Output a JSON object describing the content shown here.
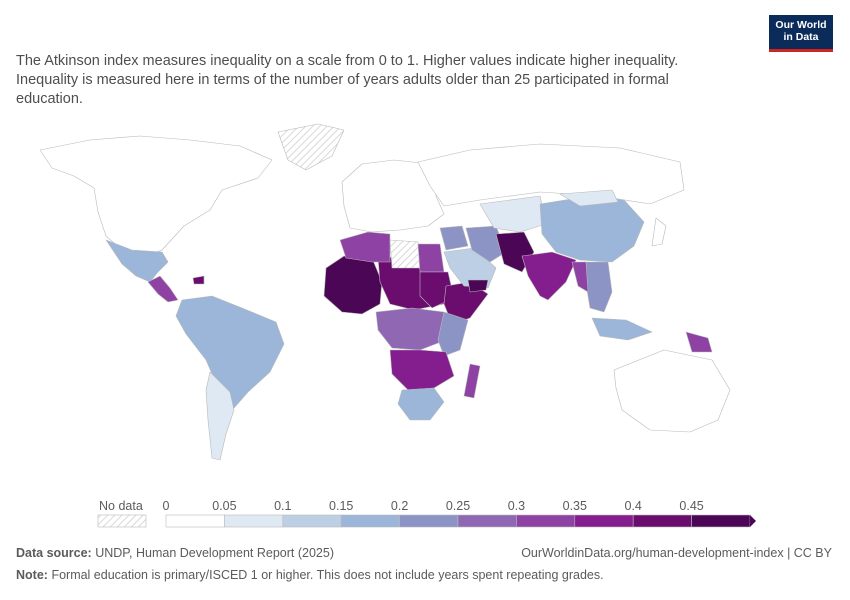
{
  "subtitle": "The Atkinson index measures inequality on a scale from 0 to 1. Higher values indicate higher inequality. Inequality is measured here in terms of the number of years adults older than 25 participated in formal education.",
  "logo": {
    "line1": "Our World",
    "line2": "in Data"
  },
  "legend": {
    "no_data_label": "No data",
    "tick_labels": [
      "0",
      "0.05",
      "0.1",
      "0.15",
      "0.2",
      "0.25",
      "0.3",
      "0.35",
      "0.4",
      "0.45"
    ],
    "bins": [
      {
        "from": 0,
        "to": 0.05,
        "color": "#ffffff"
      },
      {
        "from": 0.05,
        "to": 0.1,
        "color": "#dfe9f3"
      },
      {
        "from": 0.1,
        "to": 0.15,
        "color": "#bccfe5"
      },
      {
        "from": 0.15,
        "to": 0.2,
        "color": "#9bb6d8"
      },
      {
        "from": 0.2,
        "to": 0.25,
        "color": "#8c94c6"
      },
      {
        "from": 0.25,
        "to": 0.3,
        "color": "#8f67b3"
      },
      {
        "from": 0.3,
        "to": 0.35,
        "color": "#8e42a3"
      },
      {
        "from": 0.35,
        "to": 0.4,
        "color": "#841d8d"
      },
      {
        "from": 0.4,
        "to": 0.45,
        "color": "#6a0d6e"
      },
      {
        "from": 0.45,
        "to": 0.5,
        "color": "#4b0755"
      }
    ]
  },
  "footer": {
    "source_label": "Data source:",
    "source_text": "UNDP, Human Development Report (2025)",
    "url_text": "OurWorldinData.org/human-development-index | CC BY",
    "note_label": "Note:",
    "note_text": "Formal education is primary/ISCED 1 or higher. This does not include years spent repeating grades."
  },
  "regions": [
    {
      "name": "greenland",
      "value": null
    },
    {
      "name": "north-america",
      "value": 0.03
    },
    {
      "name": "mexico",
      "value": 0.17
    },
    {
      "name": "central-america",
      "value": 0.3
    },
    {
      "name": "haiti",
      "value": 0.42
    },
    {
      "name": "south-america",
      "value": 0.16
    },
    {
      "name": "southern-cone",
      "value": 0.06
    },
    {
      "name": "europe",
      "value": 0.03
    },
    {
      "name": "russia",
      "value": 0.02
    },
    {
      "name": "west-africa",
      "value": 0.46
    },
    {
      "name": "sahel-central",
      "value": 0.41
    },
    {
      "name": "north-africa-west",
      "value": 0.31
    },
    {
      "name": "libya",
      "value": null
    },
    {
      "name": "egypt",
      "value": 0.34
    },
    {
      "name": "sudan",
      "value": 0.41
    },
    {
      "name": "horn-of-africa",
      "value": 0.44
    },
    {
      "name": "central-africa",
      "value": 0.26
    },
    {
      "name": "east-africa",
      "value": 0.21
    },
    {
      "name": "southern-africa-north",
      "value": 0.37
    },
    {
      "name": "south-africa",
      "value": 0.16
    },
    {
      "name": "madagascar",
      "value": 0.32
    },
    {
      "name": "arabian-peninsula",
      "value": 0.12
    },
    {
      "name": "yemen",
      "value": 0.47
    },
    {
      "name": "middle-east",
      "value": 0.21
    },
    {
      "name": "iran",
      "value": 0.24
    },
    {
      "name": "central-asia",
      "value": 0.06
    },
    {
      "name": "afghanistan-pakistan",
      "value": 0.46
    },
    {
      "name": "south-asia",
      "value": 0.37
    },
    {
      "name": "china",
      "value": 0.16
    },
    {
      "name": "mongolia",
      "value": 0.06
    },
    {
      "name": "southeast-asia",
      "value": 0.22
    },
    {
      "name": "myanmar",
      "value": 0.33
    },
    {
      "name": "indonesia",
      "value": 0.15
    },
    {
      "name": "papua-new-guinea",
      "value": 0.32
    },
    {
      "name": "japan",
      "value": 0.03
    },
    {
      "name": "australia",
      "value": 0.02
    }
  ]
}
